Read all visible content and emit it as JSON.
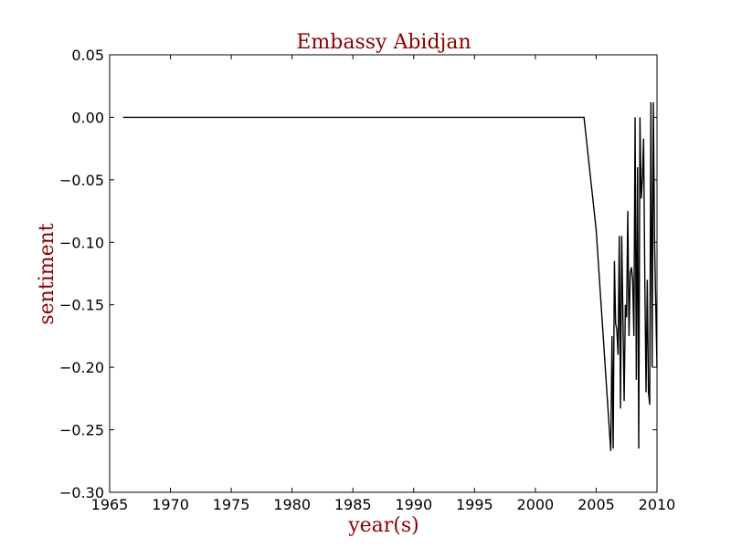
{
  "chart_data": {
    "type": "line",
    "title": "Embassy Abidjan",
    "xlabel": "year(s)",
    "ylabel": "sentiment",
    "xlim": [
      1965,
      2010
    ],
    "ylim": [
      -0.3,
      0.05
    ],
    "x_ticks": [
      1965,
      1970,
      1975,
      1980,
      1985,
      1990,
      1995,
      2000,
      2005,
      2010
    ],
    "y_ticks": [
      0.05,
      0.0,
      -0.05,
      -0.1,
      -0.15,
      -0.2,
      -0.25,
      -0.3
    ],
    "x_tick_labels": [
      "1965",
      "1970",
      "1975",
      "1980",
      "1985",
      "1990",
      "1995",
      "2000",
      "2005",
      "2010"
    ],
    "y_tick_labels": [
      "0.05",
      "0.00",
      "−0.05",
      "−0.10",
      "−0.15",
      "−0.20",
      "−0.25",
      "−0.30"
    ],
    "grid": false,
    "colors": {
      "line": "#000000",
      "label": "#8b0000",
      "frame": "#000000"
    },
    "series": [
      {
        "x": [
          1966.1,
          2004.0,
          2005.0,
          2006.2,
          2006.3,
          2006.4,
          2006.5,
          2006.6,
          2006.7,
          2006.8,
          2006.9,
          2007.0,
          2007.1,
          2007.2,
          2007.3,
          2007.4,
          2007.5,
          2007.6,
          2007.7,
          2007.8,
          2007.9,
          2008.0,
          2008.1,
          2008.2,
          2008.3,
          2008.4,
          2008.5,
          2008.6,
          2008.7,
          2008.8,
          2008.9,
          2009.0,
          2009.1,
          2009.2,
          2009.3,
          2009.4,
          2009.5,
          2009.6,
          2009.7,
          2009.8,
          2009.9,
          2010.0
        ],
        "y": [
          0.0,
          0.0,
          -0.09,
          -0.267,
          -0.175,
          -0.265,
          -0.115,
          -0.165,
          -0.17,
          -0.19,
          -0.095,
          -0.233,
          -0.095,
          -0.16,
          -0.227,
          -0.15,
          -0.16,
          -0.075,
          -0.175,
          -0.125,
          -0.12,
          -0.13,
          -0.175,
          0.0,
          -0.21,
          -0.04,
          -0.265,
          0.0,
          -0.065,
          -0.05,
          -0.017,
          -0.13,
          -0.22,
          -0.13,
          -0.22,
          -0.23,
          0.012,
          -0.2,
          0.012,
          -0.1,
          -0.15,
          -0.2
        ]
      }
    ]
  }
}
